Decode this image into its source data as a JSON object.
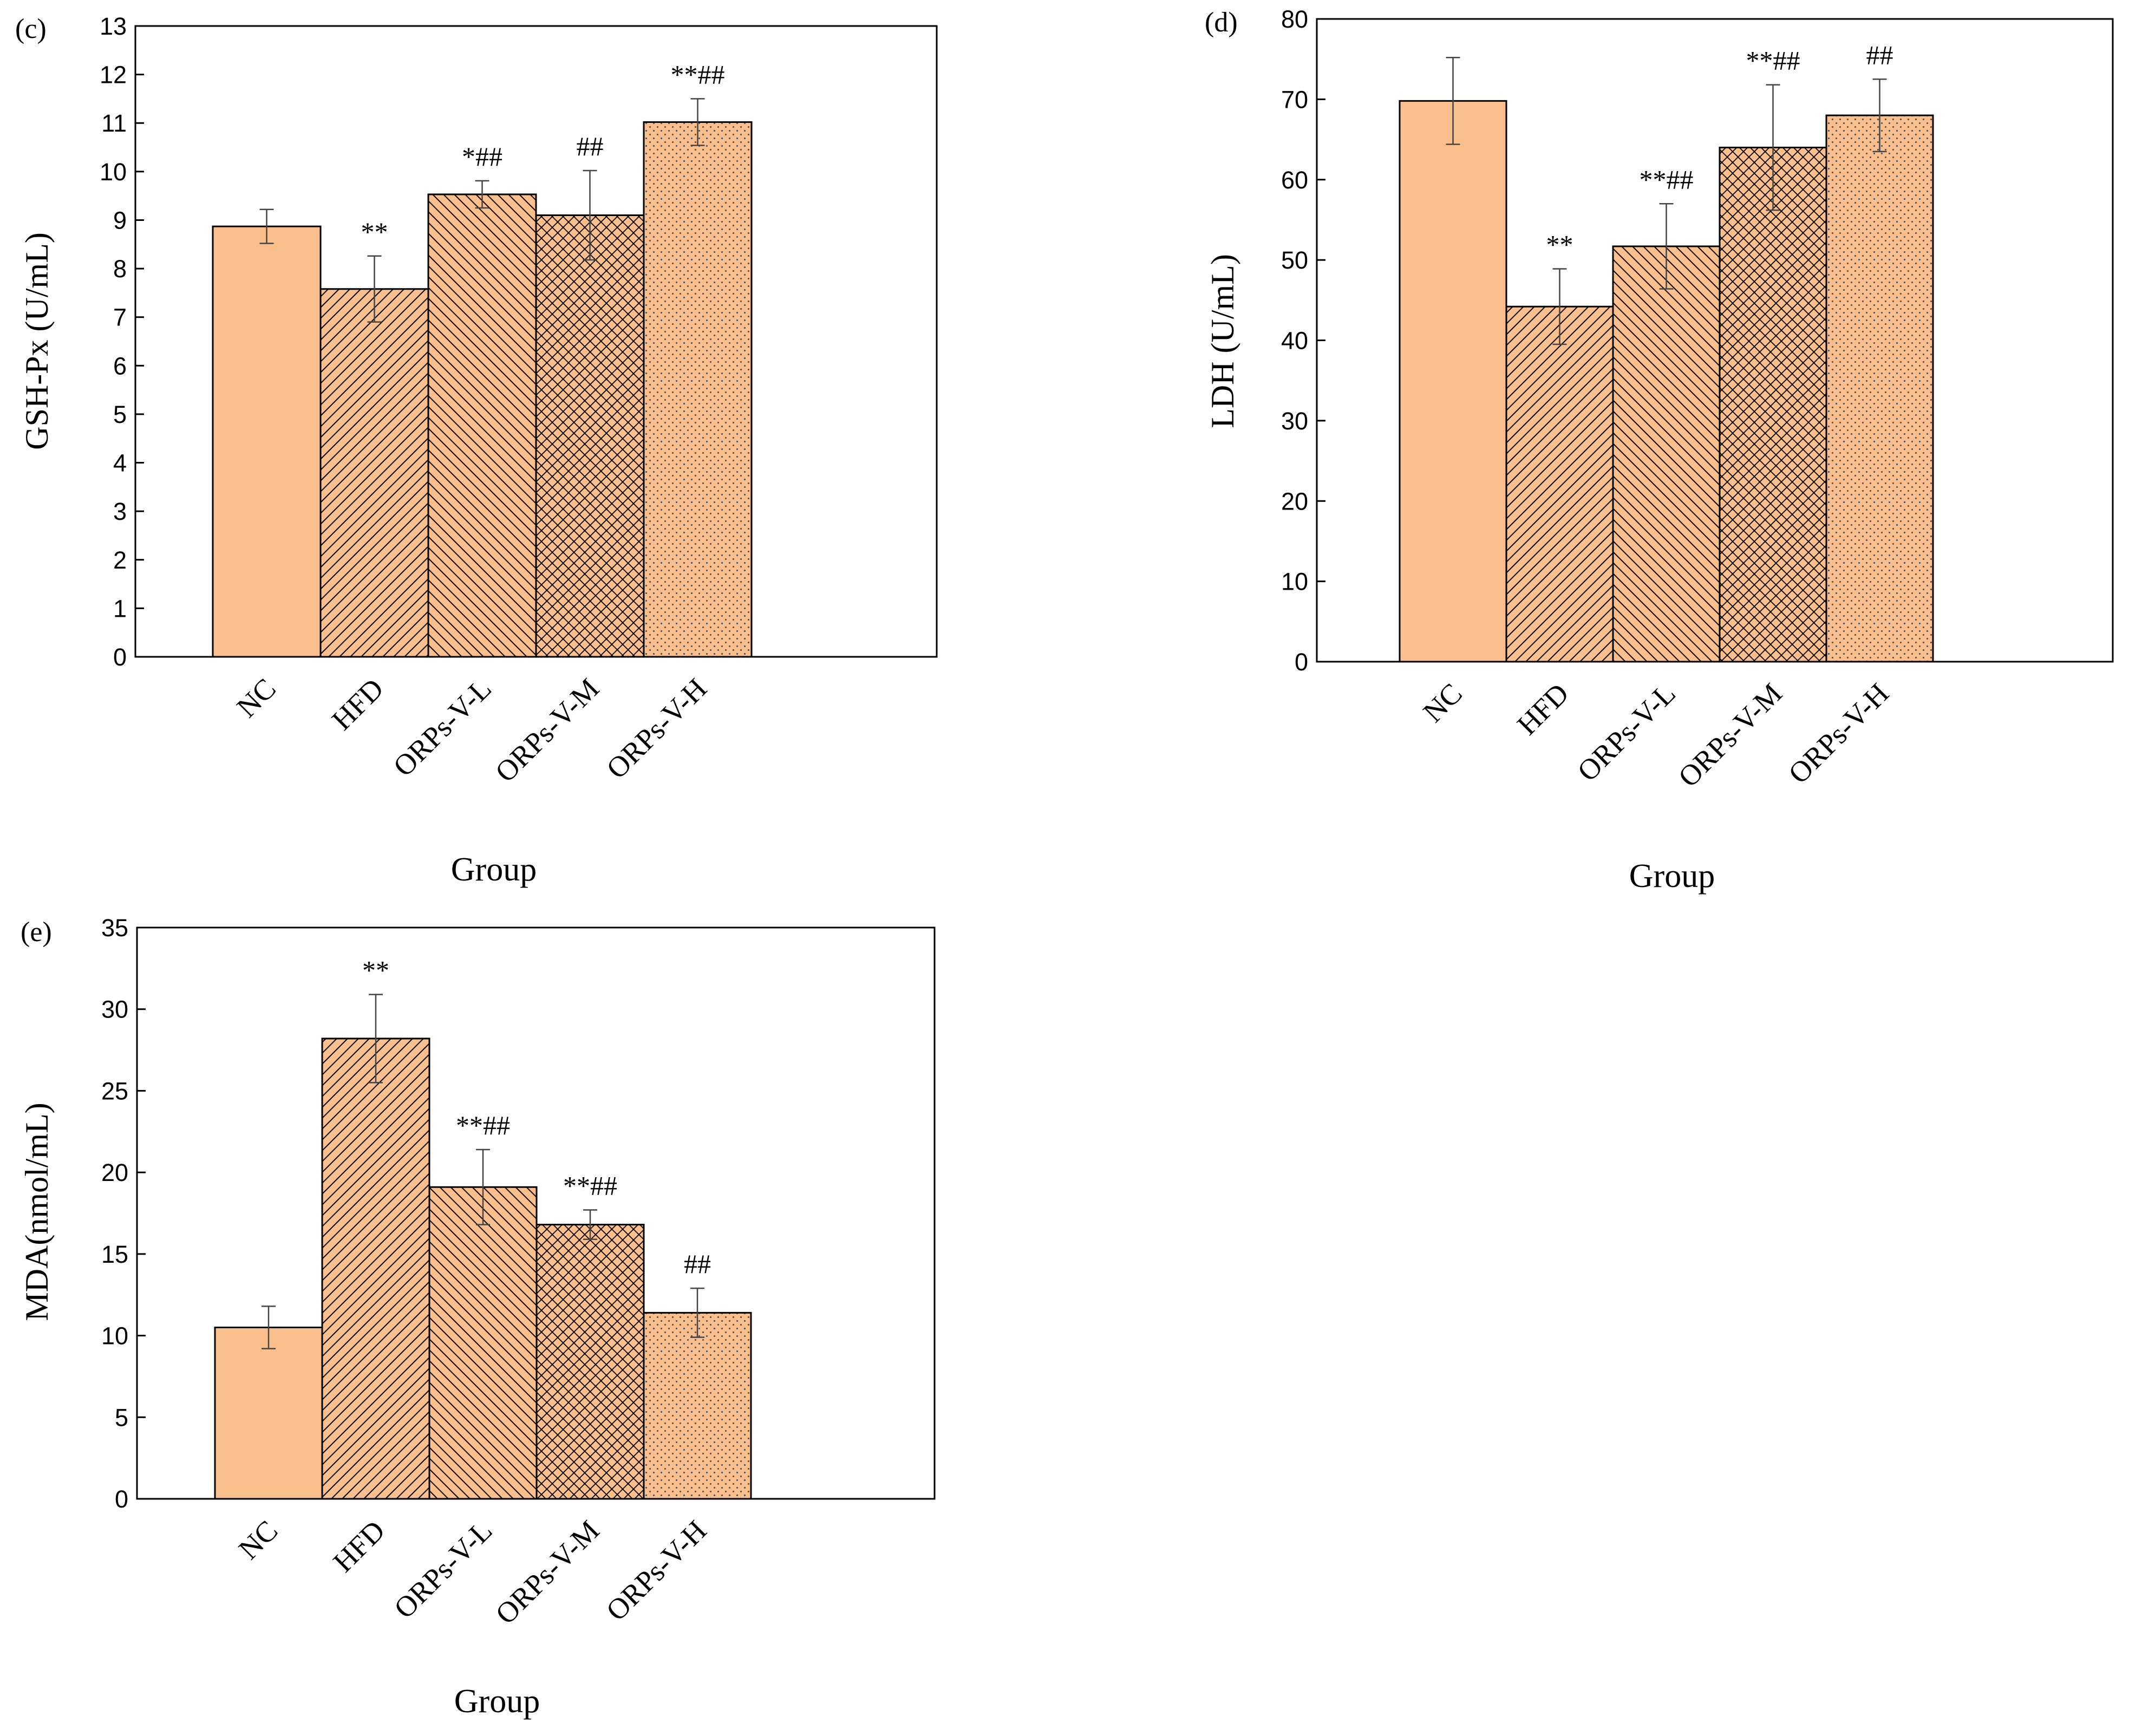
{
  "colors": {
    "bar_fill": "#fbbf8e",
    "bar_stroke": "#000000",
    "axis": "#000000",
    "background": "#ffffff"
  },
  "chart_data": [
    {
      "type": "bar",
      "panel_label": "(c)",
      "title": "",
      "xlabel": "Group",
      "ylabel": "GSH-Px (U/mL)",
      "ylim": [
        0,
        13
      ],
      "yticks": [
        0,
        1,
        2,
        3,
        4,
        5,
        6,
        7,
        8,
        9,
        10,
        11,
        12,
        13
      ],
      "categories": [
        "NC",
        "HFD",
        "ORPs-V-L",
        "ORPs-V-M",
        "ORPs-V-H"
      ],
      "values": [
        8.87,
        7.58,
        9.53,
        9.1,
        11.02
      ],
      "errors": [
        0.35,
        0.68,
        0.28,
        0.92,
        0.48
      ],
      "patterns": [
        "solid",
        "diag-fwd",
        "diag-back",
        "crosshatch",
        "dots"
      ],
      "significance": [
        "",
        "**",
        "*##",
        "##",
        "**##"
      ]
    },
    {
      "type": "bar",
      "panel_label": "(d)",
      "title": "",
      "xlabel": "Group",
      "ylabel": "LDH (U/mL)",
      "ylim": [
        0,
        80
      ],
      "yticks": [
        0,
        10,
        20,
        30,
        40,
        50,
        60,
        70,
        80
      ],
      "categories": [
        "NC",
        "HFD",
        "ORPs-V-L",
        "ORPs-V-M",
        "ORPs-V-H"
      ],
      "values": [
        69.8,
        44.2,
        51.7,
        64.0,
        68.0
      ],
      "errors": [
        5.4,
        4.7,
        5.3,
        7.8,
        4.5
      ],
      "patterns": [
        "solid",
        "diag-fwd",
        "diag-back",
        "crosshatch",
        "dots"
      ],
      "significance": [
        "",
        "**",
        "**##",
        "**##",
        "##"
      ]
    },
    {
      "type": "bar",
      "panel_label": "(e)",
      "title": "",
      "xlabel": "Group",
      "ylabel": "MDA(nmol/mL)",
      "ylim": [
        0,
        35
      ],
      "yticks": [
        0,
        5,
        10,
        15,
        20,
        25,
        30,
        35
      ],
      "categories": [
        "NC",
        "HFD",
        "ORPs-V-L",
        "ORPs-V-M",
        "ORPs-V-H"
      ],
      "values": [
        10.5,
        28.2,
        19.1,
        16.8,
        11.4
      ],
      "errors": [
        1.3,
        2.7,
        2.3,
        0.9,
        1.5
      ],
      "patterns": [
        "solid",
        "diag-fwd",
        "diag-back",
        "crosshatch",
        "dots"
      ],
      "significance": [
        "",
        "**",
        "**##",
        "**##",
        "##"
      ]
    }
  ]
}
